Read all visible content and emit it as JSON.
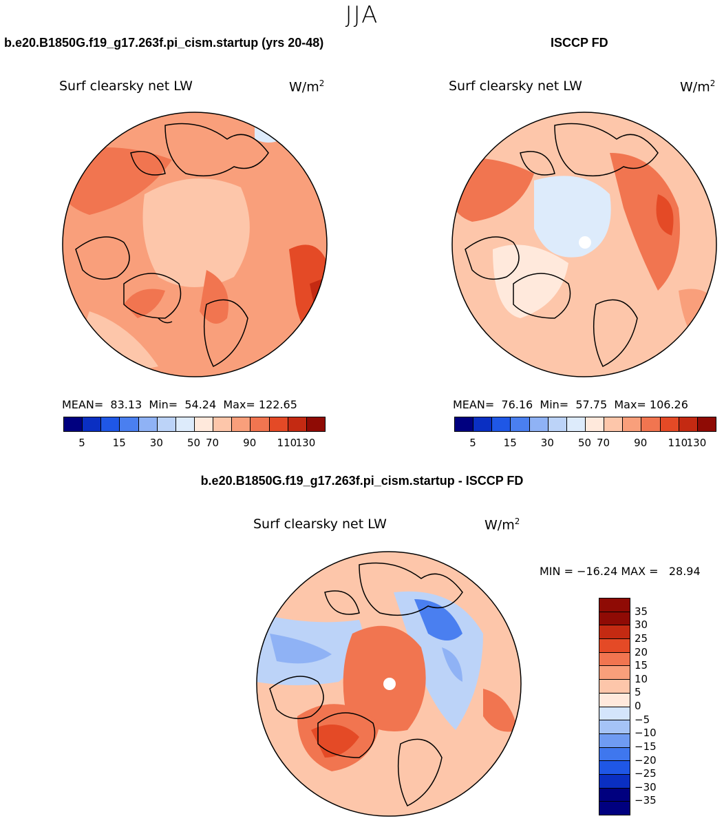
{
  "season": "JJA",
  "colors": {
    "abs_scale": [
      "#00007f",
      "#0a2fc2",
      "#1f57e6",
      "#4a7ff0",
      "#8fb2f5",
      "#bcd3f8",
      "#ddebfb",
      "#ffe9dc",
      "#fdc6aa",
      "#f99f7b",
      "#f17550",
      "#e44a26",
      "#c42a12",
      "#8f0b05"
    ],
    "diff_scale": [
      "#00007f",
      "#0a2fc2",
      "#1f57e6",
      "#3f77ee",
      "#6f9bf2",
      "#a5c3f6",
      "#d4e5fb",
      "#ffe9dc",
      "#fdc6aa",
      "#f99f7b",
      "#f17550",
      "#e44a26",
      "#c42a12",
      "#8f0b05"
    ]
  },
  "panel_left": {
    "case_title": "b.e20.B1850G.f19_g17.263f.pi_cism.startup (yrs 20-48)",
    "variable": "Surf clearsky net LW",
    "units_base": "W/m",
    "units_exp": "2",
    "stats": "MEAN=  83.13  Min=  54.24  Max= 122.65",
    "ticks": [
      "5",
      "15",
      "30",
      "50",
      "70",
      "90",
      "110",
      "130"
    ]
  },
  "panel_right": {
    "case_title": "ISCCP FD",
    "variable": "Surf clearsky net LW",
    "units_base": "W/m",
    "units_exp": "2",
    "stats": "MEAN=  76.16  Min=  57.75  Max= 106.26",
    "ticks": [
      "5",
      "15",
      "30",
      "50",
      "70",
      "90",
      "110",
      "130"
    ]
  },
  "panel_diff": {
    "case_title": "b.e20.B1850G.f19_g17.263f.pi_cism.startup - ISCCP FD",
    "variable": "Surf clearsky net LW",
    "units_base": "W/m",
    "units_exp": "2",
    "stats": "MIN = −16.24 MAX =   28.94",
    "ticks": [
      "35",
      "30",
      "25",
      "20",
      "15",
      "10",
      "5",
      "0",
      "−5",
      "−10",
      "−15",
      "−20",
      "−25",
      "−30",
      "−35"
    ]
  }
}
